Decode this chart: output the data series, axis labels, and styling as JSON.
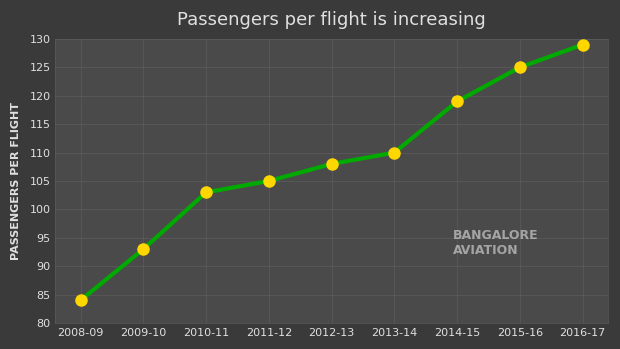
{
  "years": [
    "2008-09",
    "2009-10",
    "2010-11",
    "2011-12",
    "2012-13",
    "2013-14",
    "2014-15",
    "2015-16",
    "2016-17"
  ],
  "values": [
    84,
    93,
    103,
    105,
    108,
    110,
    119,
    125,
    129
  ],
  "title": "Passengers per flight is increasing",
  "ylabel": "PASSENGERS PER FLIGHT",
  "ylim": [
    80,
    130
  ],
  "yticks": [
    80,
    85,
    90,
    95,
    100,
    105,
    110,
    115,
    120,
    125,
    130
  ],
  "line_color": "#00aa00",
  "line_width": 3,
  "marker_color": "#FFD700",
  "marker_size": 8,
  "bg_color": "#3a3a3a",
  "plot_bg_color": "#4a4a4a",
  "text_color": "#e0e0e0",
  "grid_color": "#5a5a5a",
  "title_fontsize": 13,
  "label_fontsize": 8
}
